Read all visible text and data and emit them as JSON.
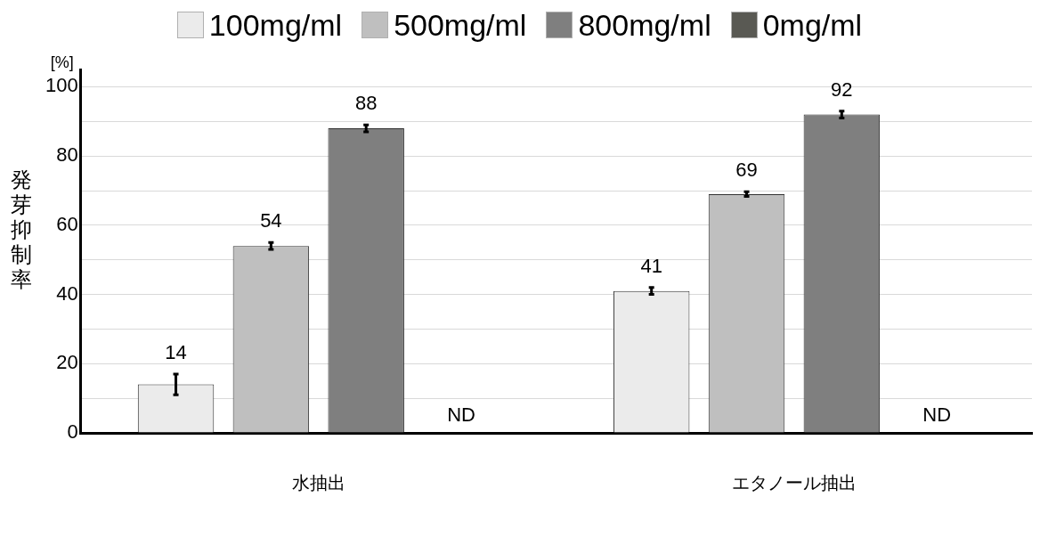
{
  "chart_data": {
    "type": "bar",
    "ylabel": "発芽抑制率",
    "annotations": [
      "[%]"
    ],
    "categories": [
      "水抽出",
      "エタノール抽出"
    ],
    "series": [
      {
        "name": "100mg/ml",
        "color": "#ebebeb",
        "values": [
          14,
          41
        ],
        "errors": [
          3,
          1
        ],
        "value_labels": [
          "14",
          "41"
        ]
      },
      {
        "name": "500mg/ml",
        "color": "#bfbfbf",
        "values": [
          54,
          69
        ],
        "errors": [
          1,
          0.7
        ],
        "value_labels": [
          "54",
          "69"
        ]
      },
      {
        "name": "800mg/ml",
        "color": "#7f7f7f",
        "values": [
          88,
          92
        ],
        "errors": [
          1,
          1
        ],
        "value_labels": [
          "88",
          "92"
        ]
      },
      {
        "name": "0mg/ml",
        "color": "#595953",
        "values": [
          null,
          null
        ],
        "value_labels": [
          "ND",
          "ND"
        ]
      }
    ],
    "ylim": [
      0,
      105
    ],
    "yticks": [
      0,
      {
        "value": 10,
        "label": null
      },
      20,
      {
        "value": 30,
        "label": null
      },
      40,
      {
        "value": 50,
        "label": null
      },
      60,
      {
        "value": 70,
        "label": null
      },
      80,
      {
        "value": 90,
        "label": null
      },
      100
    ],
    "grid": "y",
    "legend": "top"
  }
}
